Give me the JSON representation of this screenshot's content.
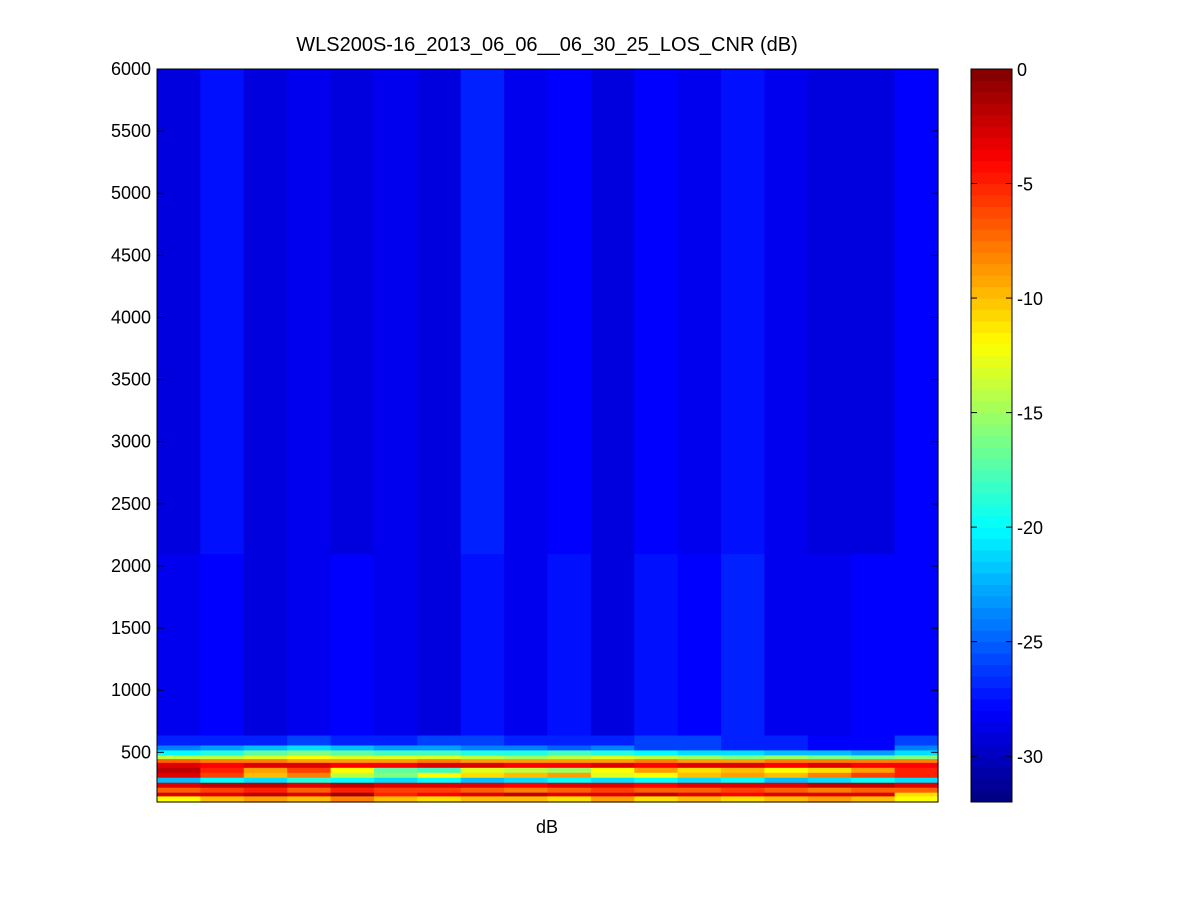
{
  "chart_data": {
    "type": "heatmap",
    "title": "WLS200S-16_2013_06_06__06_30_25_LOS_CNR (dB)",
    "xlabel": "dB",
    "ylabel": "",
    "columns": 18,
    "ylim": [
      100,
      6000
    ],
    "yticks": [
      500,
      1000,
      1500,
      2000,
      2500,
      3000,
      3500,
      4000,
      4500,
      5000,
      5500,
      6000
    ],
    "ytick_labels": [
      "500",
      "1000",
      "1500",
      "2000",
      "2500",
      "3000",
      "3500",
      "4000",
      "4500",
      "5000",
      "5500",
      "6000"
    ],
    "colorbar": {
      "colormap": "jet",
      "clim": [
        -32,
        0
      ],
      "ticks": [
        0,
        -5,
        -10,
        -15,
        -20,
        -25,
        -30
      ],
      "tick_labels": [
        "0",
        "-5",
        "-10",
        "-15",
        "-20",
        "-25",
        "-30"
      ]
    },
    "bands": [
      {
        "from": 100,
        "to": 150,
        "column_values": [
          -12,
          -10,
          -9,
          -10,
          -8,
          -10,
          -11,
          -10,
          -10,
          -11,
          -9,
          -11,
          -10,
          -11,
          -10,
          -9,
          -10,
          -12
        ]
      },
      {
        "from": 150,
        "to": 180,
        "column_values": [
          -3,
          -3,
          -2,
          -3,
          -1,
          -5,
          -4,
          -3,
          -2,
          -3,
          -3,
          -2,
          -3,
          -4,
          -3,
          -3,
          -3,
          -11
        ]
      },
      {
        "from": 180,
        "to": 220,
        "column_values": [
          -7,
          -6,
          -5,
          -7,
          -5,
          -6,
          -6,
          -7,
          -8,
          -7,
          -6,
          -7,
          -7,
          -6,
          -7,
          -8,
          -7,
          -7
        ]
      },
      {
        "from": 220,
        "to": 260,
        "column_values": [
          -3,
          -2,
          -2,
          -3,
          -2,
          -3,
          -3,
          -3,
          -4,
          -3,
          -3,
          -4,
          -3,
          -3,
          -3,
          -2,
          -2,
          -3
        ]
      },
      {
        "from": 260,
        "to": 300,
        "column_values": [
          -22,
          -20,
          -21,
          -19,
          -20,
          -21,
          -20,
          -22,
          -21,
          -20,
          -21,
          -20,
          -21,
          -20,
          -22,
          -21,
          -20,
          -21
        ]
      },
      {
        "from": 300,
        "to": 340,
        "column_values": [
          -3,
          -6,
          -10,
          -8,
          -14,
          -16,
          -12,
          -11,
          -10,
          -9,
          -13,
          -12,
          -10,
          -9,
          -10,
          -8,
          -6,
          -5
        ]
      },
      {
        "from": 340,
        "to": 380,
        "column_values": [
          -2,
          -5,
          -9,
          -6,
          -12,
          -17,
          -18,
          -13,
          -14,
          -15,
          -12,
          -9,
          -11,
          -10,
          -12,
          -11,
          -9,
          -5
        ]
      },
      {
        "from": 380,
        "to": 420,
        "column_values": [
          -3,
          -4,
          -3,
          -3,
          -4,
          -4,
          -3,
          -3,
          -4,
          -4,
          -3,
          -4,
          -3,
          -3,
          -4,
          -3,
          -4,
          -4
        ]
      },
      {
        "from": 420,
        "to": 450,
        "column_values": [
          -7,
          -8,
          -8,
          -9,
          -9,
          -9,
          -8,
          -9,
          -9,
          -9,
          -9,
          -8,
          -9,
          -9,
          -8,
          -8,
          -8,
          -8
        ]
      },
      {
        "from": 450,
        "to": 480,
        "column_values": [
          -14,
          -14,
          -13,
          -12,
          -13,
          -13,
          -13,
          -14,
          -15,
          -14,
          -13,
          -14,
          -15,
          -16,
          -15,
          -16,
          -17,
          -16
        ]
      },
      {
        "from": 480,
        "to": 520,
        "column_values": [
          -20,
          -19,
          -17,
          -16,
          -17,
          -18,
          -18,
          -19,
          -19,
          -18,
          -19,
          -20,
          -21,
          -21,
          -22,
          -22,
          -23,
          -21
        ]
      },
      {
        "from": 520,
        "to": 560,
        "column_values": [
          -24,
          -23,
          -22,
          -21,
          -22,
          -23,
          -23,
          -24,
          -24,
          -25,
          -24,
          -26,
          -26,
          -27,
          -27,
          -28,
          -28,
          -24
        ]
      },
      {
        "from": 560,
        "to": 640,
        "column_values": [
          -27,
          -27,
          -27,
          -26,
          -27,
          -27,
          -26,
          -26,
          -27,
          -27,
          -27,
          -26,
          -26,
          -27,
          -27,
          -28,
          -28,
          -26
        ]
      },
      {
        "from": 640,
        "to": 2100,
        "column_values": [
          -28.5,
          -28,
          -29,
          -28.5,
          -28,
          -28.5,
          -29,
          -27.5,
          -28.5,
          -27.5,
          -29,
          -27.5,
          -28,
          -27,
          -28.5,
          -28.5,
          -28,
          -28
        ]
      },
      {
        "from": 2100,
        "to": 6000,
        "column_values": [
          -29,
          -27.5,
          -29,
          -28.5,
          -29,
          -28.5,
          -29,
          -27,
          -28.5,
          -28,
          -29,
          -28,
          -28.5,
          -27.5,
          -28.5,
          -29,
          -29,
          -28
        ]
      }
    ]
  }
}
